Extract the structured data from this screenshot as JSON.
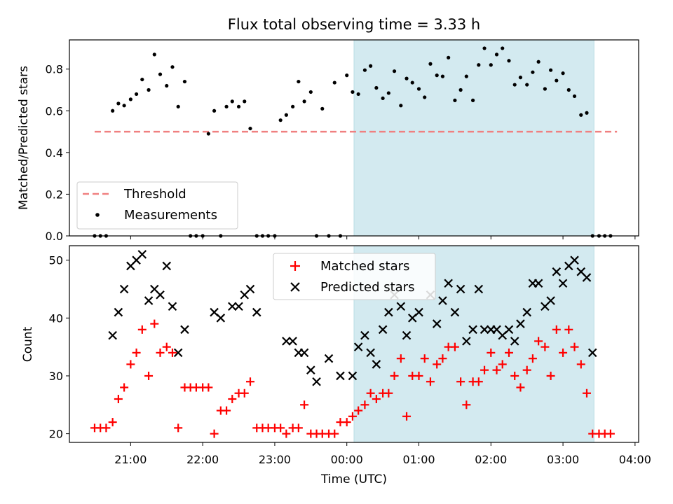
{
  "chart_data": {
    "title": "Flux total observing time = 3.33 h",
    "xlabel": "Time (UTC)",
    "x_ticks": [
      "21:00",
      "22:00",
      "23:00",
      "00:00",
      "01:00",
      "02:00",
      "03:00",
      "04:00"
    ],
    "x_range_hours": [
      20.15,
      28.05
    ],
    "shaded_interval_hours": [
      24.1,
      27.43
    ],
    "shade_color": "#d3eaf0",
    "panels": [
      {
        "type": "scatter",
        "ylabel": "Matched/Predicted stars",
        "ylim": [
          0,
          0.94
        ],
        "yticks": [
          0.0,
          0.2,
          0.4,
          0.6,
          0.8
        ],
        "ytick_labels": [
          "0.0",
          "0.2",
          "0.4",
          "0.6",
          "0.8"
        ],
        "legend_position": "lower-left",
        "threshold": {
          "name": "Threshold",
          "value": 0.5,
          "x_range_hours": [
            20.5,
            27.75
          ],
          "color": "#f08080"
        },
        "series": [
          {
            "name": "Measurements",
            "marker": "dot",
            "color": "#000000",
            "x_hours": [
              20.5,
              20.58,
              20.66,
              20.75,
              20.83,
              20.91,
              21.0,
              21.08,
              21.16,
              21.25,
              21.33,
              21.41,
              21.5,
              21.58,
              21.66,
              21.75,
              21.83,
              21.91,
              22.0,
              22.08,
              22.16,
              22.25,
              22.33,
              22.41,
              22.5,
              22.58,
              22.66,
              22.75,
              22.83,
              22.91,
              23.0,
              23.08,
              23.16,
              23.25,
              23.33,
              23.41,
              23.5,
              23.58,
              23.66,
              23.75,
              23.83,
              23.91,
              24.0,
              24.08,
              24.16,
              24.25,
              24.33,
              24.41,
              24.5,
              24.58,
              24.66,
              24.75,
              24.83,
              24.91,
              25.0,
              25.08,
              25.16,
              25.25,
              25.33,
              25.41,
              25.5,
              25.58,
              25.66,
              25.75,
              25.83,
              25.91,
              26.0,
              26.08,
              26.16,
              26.25,
              26.33,
              26.41,
              26.5,
              26.58,
              26.66,
              26.75,
              26.83,
              26.91,
              27.0,
              27.08,
              27.16,
              27.25,
              27.33,
              27.41,
              27.5,
              27.58,
              27.66
            ],
            "y": [
              0,
              0,
              0,
              0.6,
              0.635,
              0.625,
              0.655,
              0.68,
              0.75,
              0.7,
              0.87,
              0.775,
              0.72,
              0.81,
              0.62,
              0.74,
              0,
              0,
              0,
              0.49,
              0.6,
              0,
              0.62,
              0.645,
              0.62,
              0.645,
              0.515,
              0,
              0,
              0,
              0,
              0.555,
              0.58,
              0.62,
              0.74,
              0.645,
              0.69,
              0,
              0.61,
              0,
              0.735,
              0,
              0.77,
              0.69,
              0.68,
              0.795,
              0.815,
              0.71,
              0.66,
              0.685,
              0.79,
              0.625,
              0.755,
              0.735,
              0.705,
              0.665,
              0.825,
              0.77,
              0.765,
              0.855,
              0.65,
              0.7,
              0.765,
              0.65,
              0.82,
              0.9,
              0.82,
              0.87,
              0.9,
              0.84,
              0.725,
              0.76,
              0.725,
              0.785,
              0.835,
              0.705,
              0.795,
              0.745,
              0.78,
              0.7,
              0.67,
              0.58,
              0.59,
              0,
              0,
              0,
              0
            ]
          }
        ]
      },
      {
        "type": "scatter",
        "ylabel": "Count",
        "ylim": [
          18.5,
          52.5
        ],
        "yticks": [
          20,
          30,
          40,
          50
        ],
        "ytick_labels": [
          "20",
          "30",
          "40",
          "50"
        ],
        "legend_position": "upper-center",
        "series": [
          {
            "name": "Matched stars",
            "marker": "plus",
            "color": "#ff0000",
            "x_hours": [
              20.5,
              20.58,
              20.66,
              20.75,
              20.83,
              20.91,
              21.0,
              21.08,
              21.16,
              21.25,
              21.33,
              21.41,
              21.5,
              21.58,
              21.66,
              21.75,
              21.83,
              21.91,
              22.0,
              22.08,
              22.16,
              22.25,
              22.33,
              22.41,
              22.5,
              22.58,
              22.66,
              22.75,
              22.83,
              22.91,
              23.0,
              23.08,
              23.16,
              23.25,
              23.33,
              23.41,
              23.5,
              23.58,
              23.66,
              23.75,
              23.83,
              23.91,
              24.0,
              24.08,
              24.16,
              24.25,
              24.33,
              24.41,
              24.5,
              24.58,
              24.66,
              24.75,
              24.83,
              24.91,
              25.0,
              25.08,
              25.16,
              25.25,
              25.33,
              25.41,
              25.5,
              25.58,
              25.66,
              25.75,
              25.83,
              25.91,
              26.0,
              26.08,
              26.16,
              26.25,
              26.33,
              26.41,
              26.5,
              26.58,
              26.66,
              26.75,
              26.83,
              26.91,
              27.0,
              27.08,
              27.16,
              27.25,
              27.33,
              27.41,
              27.5,
              27.58,
              27.66
            ],
            "y": [
              21,
              21,
              21,
              22,
              26,
              28,
              32,
              34,
              38,
              30,
              39,
              34,
              35,
              34,
              21,
              28,
              28,
              28,
              28,
              28,
              20,
              24,
              24,
              26,
              27,
              27,
              29,
              21,
              21,
              21,
              21,
              21,
              20,
              21,
              21,
              25,
              20,
              20,
              20,
              20,
              20,
              22,
              22,
              23,
              24,
              25,
              27,
              26,
              27,
              27,
              30,
              33,
              23,
              30,
              30,
              33,
              29,
              32,
              33,
              35,
              35,
              29,
              25,
              29,
              29,
              31,
              34,
              31,
              32,
              34,
              30,
              28,
              31,
              33,
              36,
              35,
              30,
              38,
              34,
              38,
              35,
              32,
              27,
              20,
              20,
              20,
              20
            ]
          },
          {
            "name": "Predicted stars",
            "marker": "x",
            "color": "#000000",
            "x_hours": [
              20.75,
              20.83,
              20.91,
              21.0,
              21.08,
              21.16,
              21.25,
              21.33,
              21.41,
              21.5,
              21.58,
              21.66,
              21.75,
              22.16,
              22.25,
              22.41,
              22.5,
              22.58,
              22.66,
              22.75,
              23.16,
              23.25,
              23.33,
              23.41,
              23.5,
              23.58,
              23.75,
              23.91,
              24.08,
              24.16,
              24.25,
              24.33,
              24.41,
              24.5,
              24.58,
              24.66,
              24.75,
              24.83,
              24.91,
              25.0,
              25.16,
              25.25,
              25.33,
              25.41,
              25.5,
              25.58,
              25.66,
              25.75,
              25.83,
              25.91,
              26.0,
              26.08,
              26.16,
              26.25,
              26.33,
              26.41,
              26.5,
              26.58,
              26.66,
              26.75,
              26.83,
              26.91,
              27.0,
              27.08,
              27.16,
              27.25,
              27.33,
              27.41
            ],
            "y": [
              37,
              41,
              45,
              49,
              50,
              51,
              43,
              45,
              44,
              49,
              42,
              34,
              38,
              41,
              40,
              42,
              42,
              44,
              45,
              41,
              36,
              36,
              34,
              34,
              31,
              29,
              33,
              30,
              30,
              35,
              37,
              34,
              32,
              38,
              41,
              44,
              42,
              37,
              40,
              41,
              44,
              39,
              43,
              46,
              41,
              45,
              36,
              38,
              45,
              38,
              38,
              38,
              37,
              38,
              36,
              39,
              41,
              46,
              46,
              42,
              43,
              48,
              46,
              49,
              50,
              48,
              47,
              34
            ]
          }
        ]
      }
    ]
  }
}
